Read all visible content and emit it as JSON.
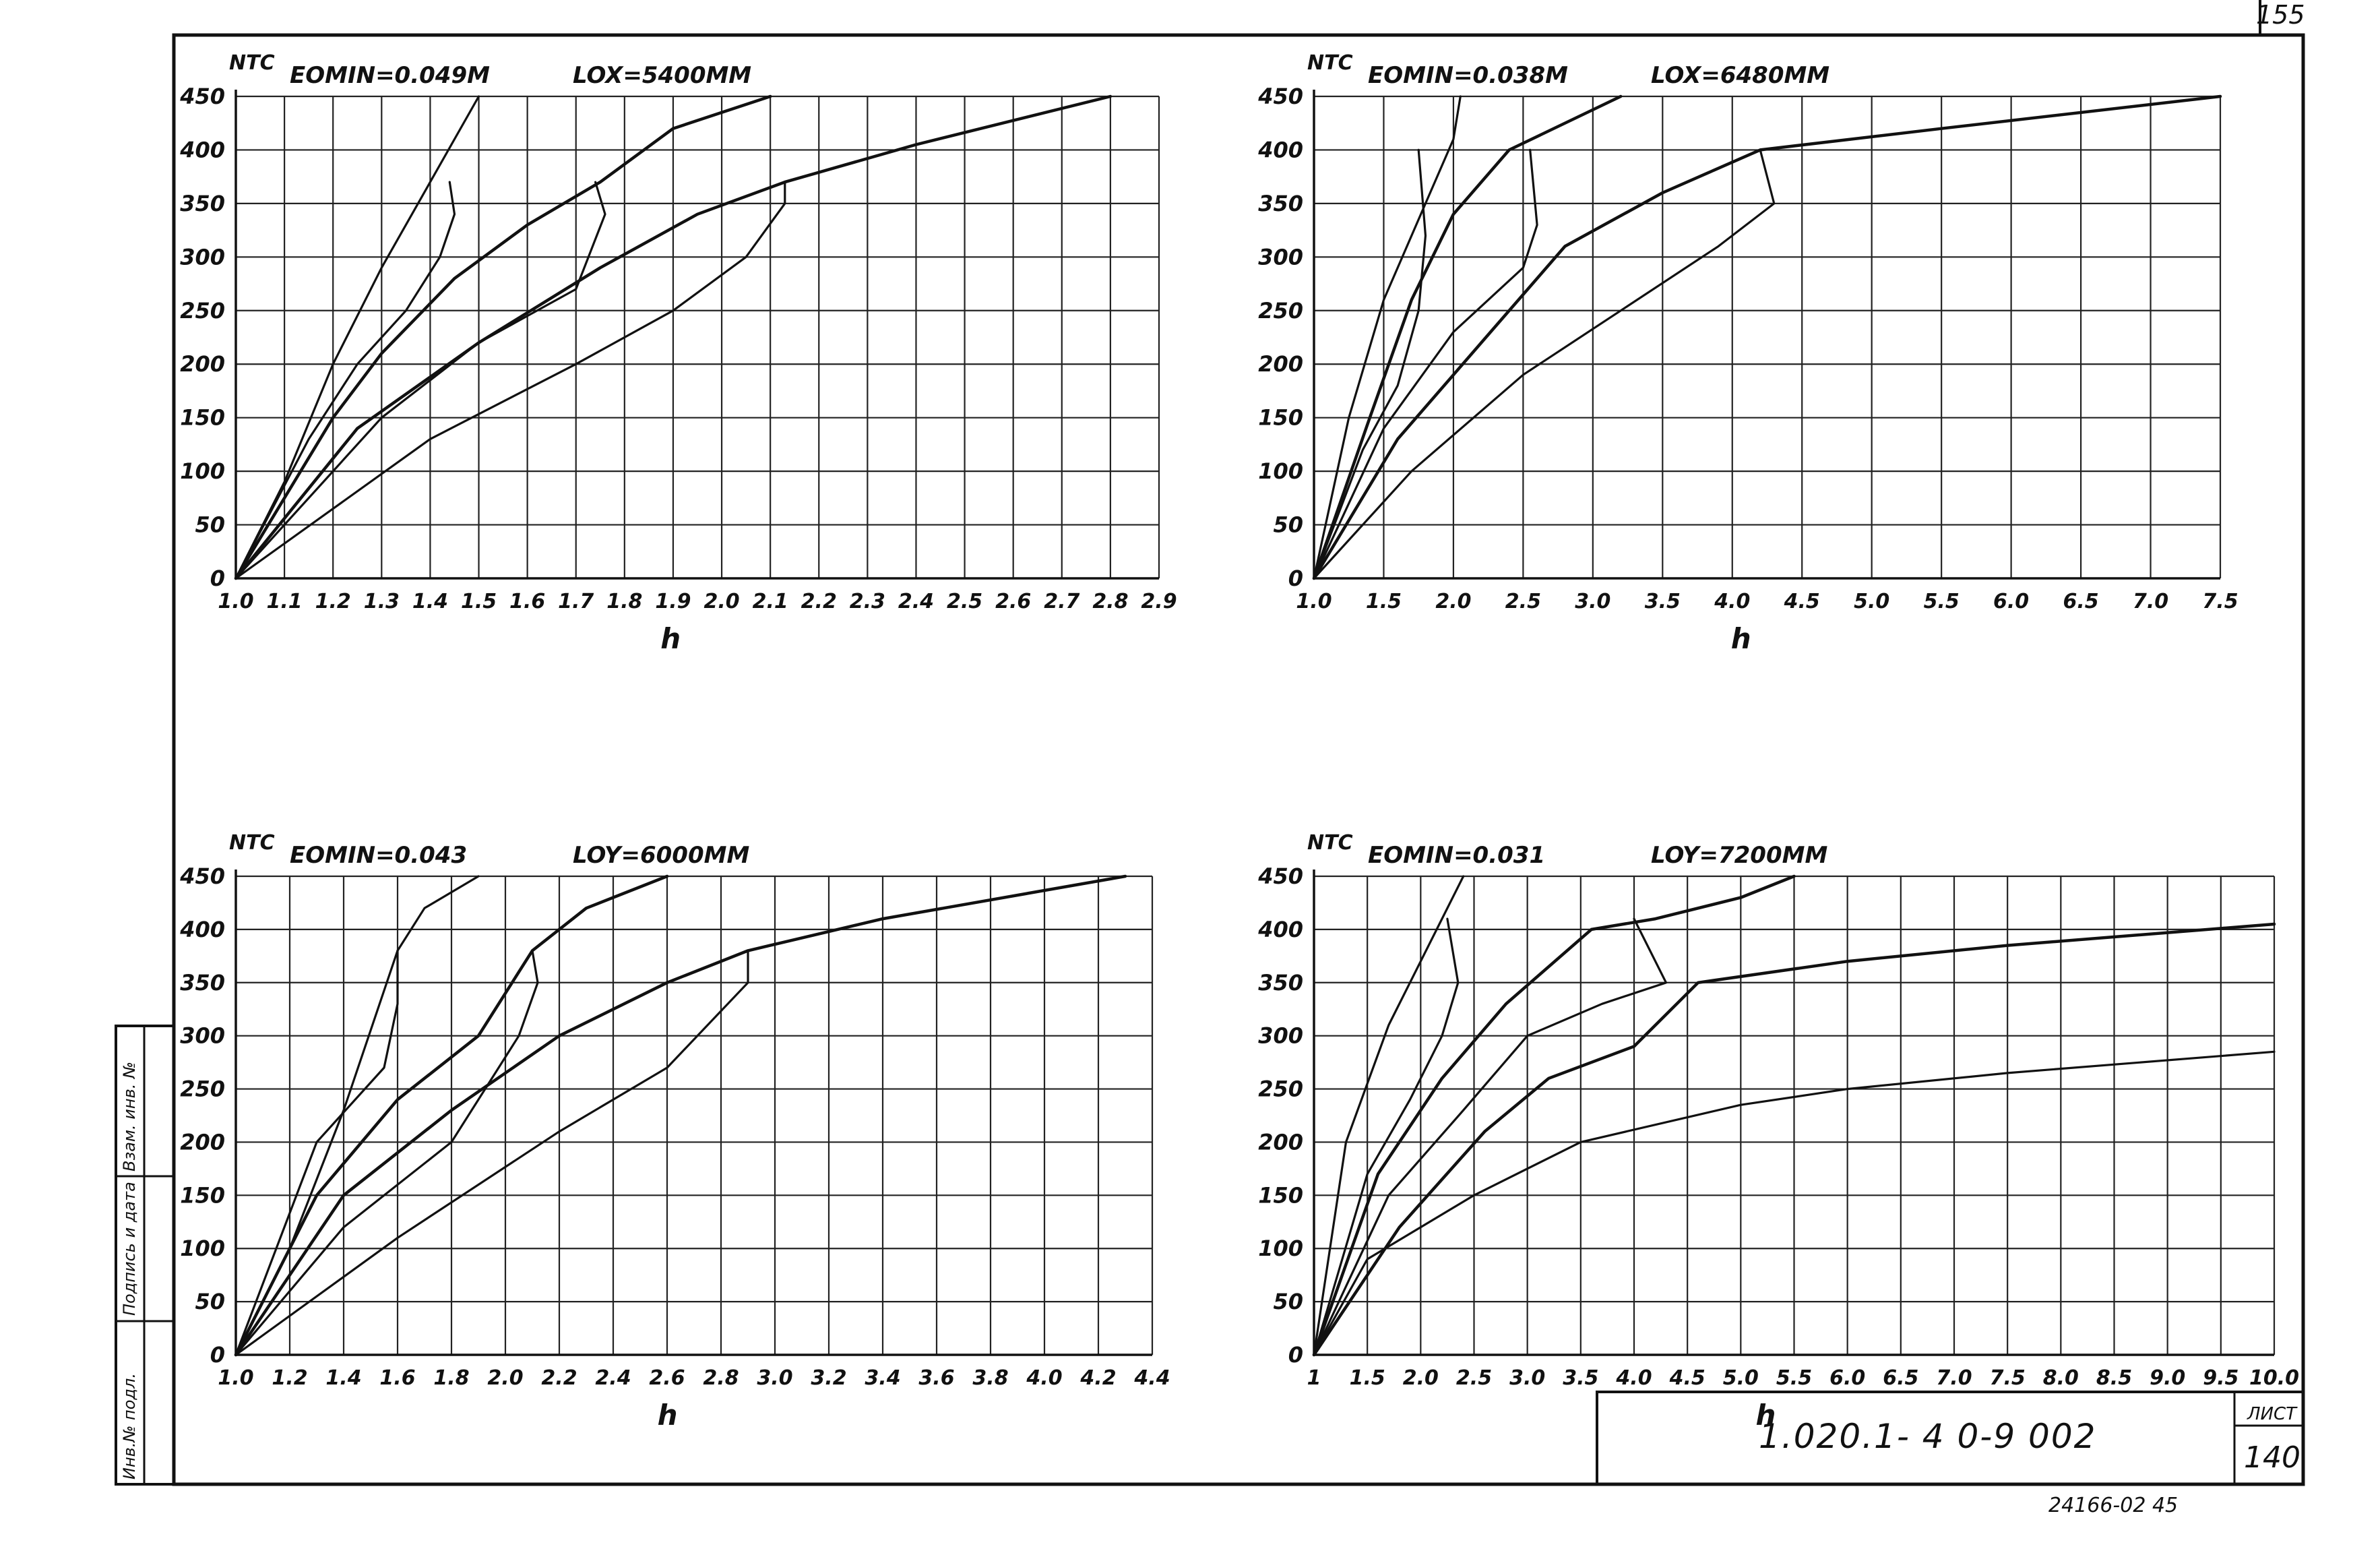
{
  "document": {
    "code": "1.020.1- 4  0-9   002",
    "sheet_label": "ЛИСТ",
    "sheet_number": "140",
    "archive_number": "24166-02   45",
    "corner_number": "155",
    "side_stamp": [
      "Инв.№ подл.",
      "Подпись и дата",
      "Взам. инв. №"
    ]
  },
  "colors": {
    "ink": "#111111",
    "grid": "#222222",
    "paper": "#ffffff"
  },
  "chart_data": [
    {
      "type": "line",
      "y_unit": "NTC",
      "x_unit": "h",
      "param_label": "EOMIN=0.049M",
      "length_label": "LOX=5400MM",
      "x_ticks": [
        "1.0",
        "1.1",
        "1.2",
        "1.3",
        "1.4",
        "1.5",
        "1.6",
        "1.7",
        "1.8",
        "1.9",
        "2.0",
        "2.1",
        "2.2",
        "2.3",
        "2.4",
        "2.5",
        "2.6",
        "2.7",
        "2.8",
        "2.9"
      ],
      "y_ticks": [
        "0",
        "50",
        "100",
        "150",
        "200",
        "250",
        "300",
        "350",
        "400",
        "450"
      ],
      "grid": true,
      "series": [
        {
          "values": [
            [
              1.0,
              0
            ],
            [
              1.1,
              90
            ],
            [
              1.2,
              200
            ],
            [
              1.3,
              290
            ],
            [
              1.4,
              370
            ],
            [
              1.5,
              450
            ]
          ]
        },
        {
          "values": [
            [
              1.0,
              0
            ],
            [
              1.15,
              130
            ],
            [
              1.25,
              200
            ],
            [
              1.35,
              250
            ],
            [
              1.42,
              300
            ],
            [
              1.45,
              340
            ],
            [
              1.44,
              370
            ]
          ]
        },
        {
          "values": [
            [
              1.0,
              0
            ],
            [
              1.2,
              150
            ],
            [
              1.3,
              210
            ],
            [
              1.45,
              280
            ],
            [
              1.6,
              330
            ],
            [
              1.75,
              370
            ],
            [
              1.9,
              420
            ],
            [
              2.1,
              450
            ]
          ]
        },
        {
          "values": [
            [
              1.0,
              0
            ],
            [
              1.3,
              150
            ],
            [
              1.5,
              220
            ],
            [
              1.7,
              270
            ],
            [
              1.76,
              340
            ],
            [
              1.74,
              370
            ]
          ]
        },
        {
          "values": [
            [
              1.0,
              0
            ],
            [
              1.25,
              140
            ],
            [
              1.5,
              220
            ],
            [
              1.75,
              290
            ],
            [
              1.95,
              340
            ],
            [
              2.13,
              370
            ],
            [
              2.4,
              405
            ],
            [
              2.8,
              450
            ]
          ]
        },
        {
          "values": [
            [
              1.0,
              0
            ],
            [
              1.4,
              130
            ],
            [
              1.7,
              200
            ],
            [
              1.9,
              250
            ],
            [
              2.05,
              300
            ],
            [
              2.13,
              350
            ],
            [
              2.13,
              370
            ]
          ]
        }
      ]
    },
    {
      "type": "line",
      "y_unit": "NTC",
      "x_unit": "h",
      "param_label": "EOMIN=0.038M",
      "length_label": "LOX=6480MM",
      "x_ticks": [
        "1.0",
        "1.5",
        "2.0",
        "2.5",
        "3.0",
        "3.5",
        "4.0",
        "4.5",
        "5.0",
        "5.5",
        "6.0",
        "6.5",
        "7.0",
        "7.5"
      ],
      "y_ticks": [
        "0",
        "50",
        "100",
        "150",
        "200",
        "250",
        "300",
        "350",
        "400",
        "450"
      ],
      "grid": true,
      "series": [
        {
          "values": [
            [
              1.0,
              0
            ],
            [
              1.25,
              150
            ],
            [
              1.5,
              260
            ],
            [
              1.8,
              350
            ],
            [
              2.0,
              410
            ],
            [
              2.05,
              450
            ]
          ]
        },
        {
          "values": [
            [
              1.0,
              0
            ],
            [
              1.35,
              120
            ],
            [
              1.6,
              180
            ],
            [
              1.75,
              250
            ],
            [
              1.8,
              320
            ],
            [
              1.75,
              400
            ]
          ]
        },
        {
          "values": [
            [
              1.0,
              0
            ],
            [
              1.4,
              150
            ],
            [
              1.7,
              260
            ],
            [
              2.0,
              340
            ],
            [
              2.4,
              400
            ],
            [
              3.2,
              450
            ]
          ]
        },
        {
          "values": [
            [
              1.0,
              0
            ],
            [
              1.5,
              140
            ],
            [
              2.0,
              230
            ],
            [
              2.5,
              290
            ],
            [
              2.6,
              330
            ],
            [
              2.55,
              400
            ]
          ]
        },
        {
          "values": [
            [
              1.0,
              0
            ],
            [
              1.6,
              130
            ],
            [
              2.2,
              220
            ],
            [
              2.8,
              310
            ],
            [
              3.5,
              360
            ],
            [
              4.2,
              400
            ],
            [
              5.5,
              420
            ],
            [
              7.5,
              450
            ]
          ]
        },
        {
          "values": [
            [
              1.0,
              0
            ],
            [
              1.7,
              100
            ],
            [
              2.5,
              190
            ],
            [
              3.2,
              250
            ],
            [
              3.9,
              310
            ],
            [
              4.3,
              350
            ],
            [
              4.2,
              400
            ]
          ]
        }
      ]
    },
    {
      "type": "line",
      "y_unit": "NTC",
      "x_unit": "h",
      "param_label": "EOMIN=0.043",
      "length_label": "LOY=6000MM",
      "x_ticks": [
        "1.0",
        "1.2",
        "1.4",
        "1.6",
        "1.8",
        "2.0",
        "2.2",
        "2.4",
        "2.6",
        "2.8",
        "3.0",
        "3.2",
        "3.4",
        "3.6",
        "3.8",
        "4.0",
        "4.2",
        "4.4"
      ],
      "y_ticks": [
        "0",
        "50",
        "100",
        "150",
        "200",
        "250",
        "300",
        "350",
        "400",
        "450"
      ],
      "grid": true,
      "series": [
        {
          "values": [
            [
              1.0,
              0
            ],
            [
              1.2,
              100
            ],
            [
              1.4,
              230
            ],
            [
              1.6,
              380
            ],
            [
              1.7,
              420
            ],
            [
              1.9,
              450
            ]
          ]
        },
        {
          "values": [
            [
              1.0,
              0
            ],
            [
              1.15,
              100
            ],
            [
              1.3,
              200
            ],
            [
              1.55,
              270
            ],
            [
              1.6,
              330
            ],
            [
              1.6,
              380
            ]
          ]
        },
        {
          "values": [
            [
              1.0,
              0
            ],
            [
              1.3,
              150
            ],
            [
              1.6,
              240
            ],
            [
              1.9,
              300
            ],
            [
              2.1,
              380
            ],
            [
              2.3,
              420
            ],
            [
              2.6,
              450
            ]
          ]
        },
        {
          "values": [
            [
              1.0,
              0
            ],
            [
              1.4,
              120
            ],
            [
              1.8,
              200
            ],
            [
              2.05,
              300
            ],
            [
              2.12,
              350
            ],
            [
              2.1,
              380
            ]
          ]
        },
        {
          "values": [
            [
              1.0,
              0
            ],
            [
              1.4,
              150
            ],
            [
              1.8,
              230
            ],
            [
              2.2,
              300
            ],
            [
              2.6,
              350
            ],
            [
              2.9,
              380
            ],
            [
              3.4,
              410
            ],
            [
              4.3,
              450
            ]
          ]
        },
        {
          "values": [
            [
              1.0,
              0
            ],
            [
              1.6,
              110
            ],
            [
              2.2,
              210
            ],
            [
              2.6,
              270
            ],
            [
              2.9,
              350
            ],
            [
              2.9,
              380
            ]
          ]
        }
      ]
    },
    {
      "type": "line",
      "y_unit": "NTC",
      "x_unit": "h",
      "param_label": "EOMIN=0.031",
      "length_label": "LOY=7200MM",
      "x_ticks": [
        "1",
        "1.5",
        "2.0",
        "2.5",
        "3.0",
        "3.5",
        "4.0",
        "4.5",
        "5.0",
        "5.5",
        "6.0",
        "6.5",
        "7.0",
        "7.5",
        "8.0",
        "8.5",
        "9.0",
        "9.5",
        "10.0"
      ],
      "y_ticks": [
        "0",
        "50",
        "100",
        "150",
        "200",
        "250",
        "300",
        "350",
        "400",
        "450"
      ],
      "grid": true,
      "series": [
        {
          "values": [
            [
              1.0,
              0
            ],
            [
              1.3,
              200
            ],
            [
              1.7,
              310
            ],
            [
              2.2,
              410
            ],
            [
              2.4,
              450
            ]
          ]
        },
        {
          "values": [
            [
              1.0,
              0
            ],
            [
              1.5,
              170
            ],
            [
              1.9,
              240
            ],
            [
              2.2,
              300
            ],
            [
              2.35,
              350
            ],
            [
              2.25,
              410
            ]
          ]
        },
        {
          "values": [
            [
              1.0,
              0
            ],
            [
              1.6,
              170
            ],
            [
              2.2,
              260
            ],
            [
              2.8,
              330
            ],
            [
              3.6,
              400
            ],
            [
              4.2,
              410
            ],
            [
              5.0,
              430
            ],
            [
              5.5,
              450
            ]
          ]
        },
        {
          "values": [
            [
              1.0,
              0
            ],
            [
              1.7,
              150
            ],
            [
              2.4,
              230
            ],
            [
              3.0,
              300
            ],
            [
              3.7,
              330
            ],
            [
              4.3,
              350
            ],
            [
              4.0,
              410
            ]
          ]
        },
        {
          "values": [
            [
              1.0,
              0
            ],
            [
              1.8,
              120
            ],
            [
              2.6,
              210
            ],
            [
              3.2,
              260
            ],
            [
              4.0,
              290
            ],
            [
              4.6,
              350
            ],
            [
              6.0,
              370
            ],
            [
              7.5,
              385
            ],
            [
              10.0,
              405
            ]
          ]
        },
        {
          "values": [
            [
              1.0,
              0
            ],
            [
              1.5,
              90
            ],
            [
              2.5,
              150
            ],
            [
              3.5,
              200
            ],
            [
              5.0,
              235
            ],
            [
              6.0,
              250
            ],
            [
              7.5,
              265
            ],
            [
              10.0,
              285
            ]
          ]
        }
      ]
    }
  ]
}
